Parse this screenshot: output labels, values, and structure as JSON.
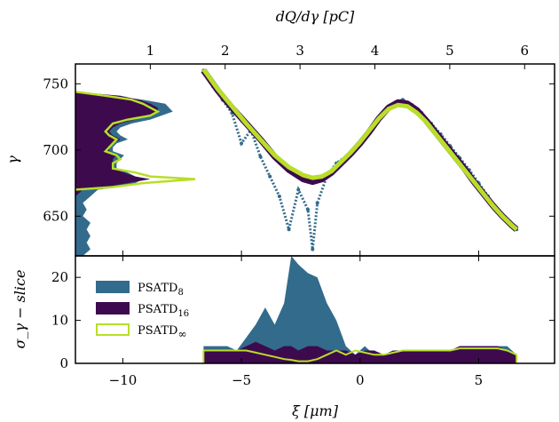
{
  "colors": {
    "psatd8": "#336b8c",
    "psatd16": "#3d0a4e",
    "psatdinf": "#b8de29"
  },
  "chart_data": [
    {
      "type": "scatter",
      "panel": "top",
      "xlabel": "",
      "ylabel": "γ",
      "top_xlabel": "dQ/dγ [pC]",
      "xlim": [
        -12,
        8.2
      ],
      "ylim": [
        620,
        765
      ],
      "yticks": [
        "650",
        "700",
        "750"
      ],
      "ytick_values": [
        650,
        700,
        750
      ],
      "top_xticks": [
        "1",
        "2",
        "3",
        "4",
        "5",
        "6"
      ],
      "top_xtick_values": [
        1,
        2,
        3,
        4,
        5,
        6
      ],
      "top_xlim": [
        0,
        6.4
      ],
      "histogram": {
        "gamma": [
          620,
          625,
          630,
          635,
          640,
          645,
          650,
          655,
          660,
          665,
          670,
          672,
          675,
          678,
          680,
          683,
          686,
          690,
          693,
          696,
          699,
          702,
          705,
          708,
          711,
          714,
          717,
          720,
          723,
          726,
          729,
          732,
          735,
          738,
          741,
          744
        ],
        "psatd8": [
          0.1,
          0.2,
          0.15,
          0.2,
          0.15,
          0.2,
          0.1,
          0.15,
          0.1,
          0.2,
          0.3,
          0.6,
          0.8,
          0.9,
          0.8,
          0.7,
          0.55,
          0.55,
          0.6,
          0.65,
          0.5,
          0.5,
          0.55,
          0.7,
          0.6,
          0.55,
          0.6,
          0.75,
          1.0,
          1.15,
          1.3,
          1.25,
          1.2,
          0.9,
          0.5,
          0.0
        ],
        "psatd16": [
          0,
          0,
          0,
          0,
          0,
          0,
          0,
          0,
          0,
          0,
          0.1,
          0.4,
          0.7,
          1.0,
          0.8,
          0.65,
          0.5,
          0.5,
          0.5,
          0.55,
          0.45,
          0.45,
          0.5,
          0.6,
          0.5,
          0.45,
          0.5,
          0.6,
          0.8,
          1.0,
          1.1,
          1.1,
          1.0,
          0.85,
          0.6,
          0.0
        ],
        "psatdinf": [
          null,
          null,
          null,
          null,
          null,
          null,
          null,
          null,
          null,
          null,
          0.0,
          0.5,
          0.9,
          1.6,
          1.0,
          0.8,
          0.5,
          0.5,
          0.6,
          0.55,
          0.4,
          0.45,
          0.5,
          0.55,
          0.45,
          0.4,
          0.45,
          0.5,
          0.7,
          1.0,
          1.1,
          1.0,
          0.9,
          0.75,
          0.4,
          0.0
        ]
      },
      "series": [
        {
          "name": "PSATD8",
          "x": [
            -6.6,
            -6.2,
            -5.8,
            -5.4,
            -5.0,
            -4.6,
            -4.2,
            -3.8,
            -3.4,
            -3.0,
            -2.6,
            -2.2,
            -2.0,
            -1.8,
            -1.4,
            -1.0,
            -0.6,
            -0.2,
            0.2,
            0.6,
            1.0,
            1.4,
            1.8,
            2.2,
            2.6,
            3.0,
            3.4,
            3.8,
            4.2,
            4.6,
            5.0,
            5.4,
            5.8,
            6.2,
            6.6
          ],
          "y": [
            760,
            748,
            738,
            728,
            705,
            715,
            695,
            680,
            665,
            640,
            670,
            655,
            625,
            660,
            680,
            690,
            695,
            700,
            708,
            718,
            728,
            735,
            738,
            734,
            728,
            720,
            712,
            703,
            694,
            685,
            675,
            665,
            655,
            647,
            640
          ]
        },
        {
          "name": "PSATD16",
          "x": [
            -6.6,
            -6.0,
            -5.4,
            -4.8,
            -4.2,
            -3.6,
            -3.0,
            -2.4,
            -2.0,
            -1.6,
            -1.2,
            -0.8,
            -0.4,
            0.0,
            0.4,
            0.8,
            1.2,
            1.6,
            2.0,
            2.4,
            2.8,
            3.2,
            3.6,
            4.0,
            4.4,
            4.8,
            5.2,
            5.6,
            6.0,
            6.4,
            6.6
          ],
          "y": [
            760,
            745,
            732,
            720,
            708,
            695,
            685,
            678,
            676,
            678,
            683,
            690,
            697,
            705,
            714,
            724,
            732,
            736,
            735,
            730,
            722,
            713,
            704,
            695,
            686,
            676,
            667,
            658,
            650,
            643,
            640
          ]
        },
        {
          "name": "PSATD∞",
          "x": [
            -6.6,
            -6.0,
            -5.4,
            -4.8,
            -4.2,
            -3.6,
            -3.0,
            -2.4,
            -2.0,
            -1.6,
            -1.2,
            -0.8,
            -0.4,
            0.0,
            0.4,
            0.8,
            1.2,
            1.6,
            2.0,
            2.4,
            2.8,
            3.2,
            3.6,
            4.0,
            4.4,
            4.8,
            5.2,
            5.6,
            6.0,
            6.4,
            6.6
          ],
          "y": [
            761,
            746,
            733,
            720,
            708,
            696,
            687,
            681,
            679,
            680,
            684,
            691,
            698,
            706,
            715,
            724,
            731,
            734,
            733,
            728,
            721,
            712,
            703,
            694,
            685,
            676,
            667,
            658,
            650,
            643,
            640
          ]
        }
      ]
    },
    {
      "type": "area",
      "panel": "bottom",
      "xlabel": "ξ [μm]",
      "ylabel": "σ_γ − slice",
      "xlim": [
        -12,
        8.2
      ],
      "ylim": [
        0,
        25
      ],
      "xticks": [
        "−10",
        "−5",
        "0",
        "5"
      ],
      "xtick_values": [
        -10,
        -5,
        0,
        5
      ],
      "yticks": [
        "0",
        "10",
        "20"
      ],
      "ytick_values": [
        0,
        10,
        20
      ],
      "legend": [
        "PSATD8",
        "PSATD16",
        "PSATD∞"
      ],
      "legend_labels": {
        "psatd8_main": "PSATD",
        "psatd8_sub": "8",
        "psatd16_main": "PSATD",
        "psatd16_sub": "16",
        "psatdinf_main": "PSATD",
        "psatdinf_sub": "∞"
      },
      "legend_position": "upper-left",
      "x": [
        -6.6,
        -6.0,
        -5.6,
        -5.2,
        -4.8,
        -4.4,
        -4.0,
        -3.6,
        -3.2,
        -2.9,
        -2.6,
        -2.2,
        -1.8,
        -1.4,
        -1.0,
        -0.6,
        -0.2,
        0.2,
        0.6,
        1.0,
        1.4,
        1.8,
        2.2,
        2.6,
        3.0,
        3.4,
        3.8,
        4.2,
        4.6,
        5.0,
        5.4,
        5.8,
        6.2,
        6.6
      ],
      "series": [
        {
          "name": "PSATD8",
          "values": [
            4,
            4,
            4,
            3,
            6,
            9,
            13,
            9,
            14,
            25,
            23,
            21,
            20,
            14,
            10,
            4,
            2,
            4,
            2,
            2,
            3,
            3,
            3,
            3,
            3,
            3,
            3,
            4,
            4,
            4,
            4,
            4,
            4,
            2
          ]
        },
        {
          "name": "PSATD16",
          "values": [
            3,
            3,
            3,
            3,
            4,
            5,
            4,
            3,
            4,
            4,
            3,
            4,
            4,
            3,
            3,
            3,
            2,
            3,
            3,
            2,
            3,
            3,
            3,
            3,
            3,
            3,
            3,
            4,
            4,
            4,
            4,
            4,
            3,
            2
          ]
        },
        {
          "name": "PSATD∞",
          "values": [
            3,
            3,
            3,
            3,
            3,
            2.5,
            2,
            1.5,
            1,
            0.8,
            0.5,
            0.5,
            1,
            2,
            3,
            2,
            3,
            2.5,
            2,
            2,
            2.5,
            3,
            3,
            3,
            3,
            3,
            3,
            3.5,
            3.5,
            3.5,
            3.5,
            3.5,
            3,
            2
          ]
        }
      ]
    }
  ]
}
